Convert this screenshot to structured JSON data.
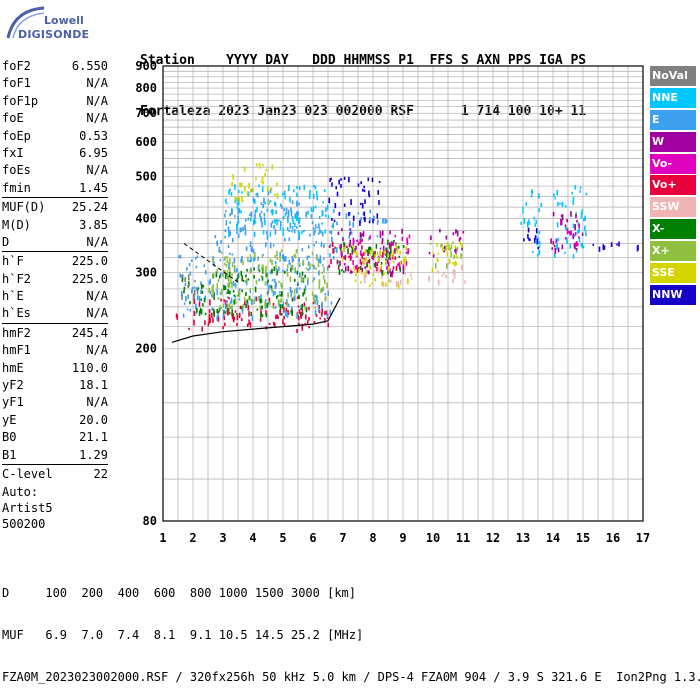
{
  "logo": {
    "brand_top": "Lowell",
    "brand_bottom": "DIGISONDE"
  },
  "header": {
    "line1": "Station    YYYY DAY   DDD HHMMSS P1  FFS S AXN PPS IGA PS",
    "line2": "Fortaleza 2023 Jan23 023 002000 RSF      1 714 100 10+ 11"
  },
  "params": [
    {
      "name": "foF2",
      "value": "6.550"
    },
    {
      "name": "foF1",
      "value": "N/A"
    },
    {
      "name": "foF1p",
      "value": "N/A"
    },
    {
      "name": "foE",
      "value": "N/A"
    },
    {
      "name": "foEp",
      "value": "0.53"
    },
    {
      "name": "fxI",
      "value": "6.95"
    },
    {
      "name": "foEs",
      "value": "N/A"
    },
    {
      "name": "fmin",
      "value": "1.45"
    },
    {
      "sep": true
    },
    {
      "name": "MUF(D)",
      "value": "25.24"
    },
    {
      "name": "M(D)",
      "value": "3.85"
    },
    {
      "name": "D",
      "value": "N/A"
    },
    {
      "sep": true
    },
    {
      "name": "h`F",
      "value": "225.0"
    },
    {
      "name": "h`F2",
      "value": "225.0"
    },
    {
      "name": "h`E",
      "value": "N/A"
    },
    {
      "name": "h`Es",
      "value": "N/A"
    },
    {
      "sep": true
    },
    {
      "name": "hmF2",
      "value": "245.4"
    },
    {
      "name": "hmF1",
      "value": "N/A"
    },
    {
      "name": "hmE",
      "value": "110.0"
    },
    {
      "name": "yF2",
      "value": "18.1"
    },
    {
      "name": "yF1",
      "value": "N/A"
    },
    {
      "name": "yE",
      "value": "20.0"
    },
    {
      "name": "B0",
      "value": "21.1"
    },
    {
      "name": "B1",
      "value": "1.29"
    },
    {
      "sep": true
    },
    {
      "name": "C-level",
      "value": "22"
    }
  ],
  "auto": {
    "line1": "Auto:",
    "line2": "Artist5",
    "line3": "500200"
  },
  "footer": {
    "line1": "D     100  200  400  600  800 1000 1500 3000 [km]",
    "line2": "MUF   6.9  7.0  7.4  8.1  9.1 10.5 14.5 25.2 [MHz]",
    "line3": "FZA0M_2023023002000.RSF / 320fx256h 50 kHz 5.0 km / DPS-4 FZA0M 904 / 3.9 S 321.6 E  Ion2Png 1.3.20"
  },
  "legend": [
    {
      "label": "NoVal",
      "color": "#808080"
    },
    {
      "label": "NNE",
      "color": "#00c8ff"
    },
    {
      "label": "E",
      "color": "#3ca0f0"
    },
    {
      "label": "W",
      "color": "#a000a0"
    },
    {
      "label": "Vo-",
      "color": "#e000c0"
    },
    {
      "label": "Vo+",
      "color": "#e8003c"
    },
    {
      "label": "SSW",
      "color": "#f0b4b4"
    },
    {
      "label": "X-",
      "color": "#008000"
    },
    {
      "label": "X+",
      "color": "#90c040"
    },
    {
      "label": "SSE",
      "color": "#d4d400"
    },
    {
      "label": "NNW",
      "color": "#1400c8"
    }
  ],
  "chart_data": {
    "type": "scatter",
    "title": "",
    "xlabel": "",
    "ylabel": "",
    "xlim": [
      1,
      17
    ],
    "ylim": [
      80,
      900
    ],
    "y_scale": "log",
    "x_ticks": [
      1,
      2,
      3,
      4,
      5,
      6,
      7,
      8,
      9,
      10,
      11,
      12,
      13,
      14,
      15,
      16,
      17
    ],
    "y_ticks": [
      80,
      200,
      300,
      400,
      500,
      600,
      700,
      800,
      900
    ],
    "grid": true,
    "legend_position": "right",
    "series": [
      {
        "name": "Vo+",
        "color": "#e8003c",
        "regions": [
          {
            "x": [
              1.4,
              6.5
            ],
            "y": [
              222,
              248
            ]
          },
          {
            "x": [
              2.0,
              6.5
            ],
            "y": [
              235,
              265
            ]
          },
          {
            "x": [
              6.5,
              8.8
            ],
            "y": [
              300,
              355
            ]
          }
        ]
      },
      {
        "name": "E",
        "color": "#3ca0f0",
        "regions": [
          {
            "x": [
              1.5,
              6.6
            ],
            "y": [
              238,
              330
            ]
          },
          {
            "x": [
              2.7,
              6.9
            ],
            "y": [
              318,
              425
            ]
          },
          {
            "x": [
              3.2,
              6.0
            ],
            "y": [
              395,
              470
            ]
          },
          {
            "x": [
              7.0,
              8.5
            ],
            "y": [
              360,
              420
            ]
          }
        ]
      },
      {
        "name": "NNE",
        "color": "#00c8ff",
        "regions": [
          {
            "x": [
              3.0,
              6.5
            ],
            "y": [
              370,
              480
            ]
          },
          {
            "x": [
              12.9,
              13.6
            ],
            "y": [
              330,
              470
            ]
          },
          {
            "x": [
              14.0,
              15.2
            ],
            "y": [
              330,
              480
            ]
          }
        ]
      },
      {
        "name": "W",
        "color": "#a000a0",
        "regions": [
          {
            "x": [
              6.8,
              9.1
            ],
            "y": [
              300,
              380
            ]
          },
          {
            "x": [
              9.8,
              11.0
            ],
            "y": [
              330,
              380
            ]
          },
          {
            "x": [
              13.9,
              15.0
            ],
            "y": [
              340,
              420
            ]
          }
        ]
      },
      {
        "name": "Vo-",
        "color": "#e000c0",
        "regions": [
          {
            "x": [
              6.7,
              9.2
            ],
            "y": [
              310,
              375
            ]
          },
          {
            "x": [
              14.0,
              14.9
            ],
            "y": [
              345,
              400
            ]
          }
        ]
      },
      {
        "name": "SSW",
        "color": "#f0b4b4",
        "regions": [
          {
            "x": [
              7.5,
              9.3
            ],
            "y": [
              285,
              315
            ]
          },
          {
            "x": [
              9.8,
              11.1
            ],
            "y": [
              285,
              320
            ]
          }
        ]
      },
      {
        "name": "X-",
        "color": "#008000",
        "regions": [
          {
            "x": [
              1.6,
              5.8
            ],
            "y": [
              240,
              310
            ]
          },
          {
            "x": [
              6.8,
              9.0
            ],
            "y": [
              300,
              360
            ]
          }
        ]
      },
      {
        "name": "X+",
        "color": "#90c040",
        "regions": [
          {
            "x": [
              2.5,
              6.5
            ],
            "y": [
              250,
              340
            ]
          },
          {
            "x": [
              9.8,
              11.0
            ],
            "y": [
              315,
              360
            ]
          }
        ]
      },
      {
        "name": "SSE",
        "color": "#d4d400",
        "regions": [
          {
            "x": [
              3.2,
              4.8
            ],
            "y": [
              440,
              540
            ]
          },
          {
            "x": [
              6.9,
              9.2
            ],
            "y": [
              280,
              350
            ]
          },
          {
            "x": [
              9.9,
              11.0
            ],
            "y": [
              300,
              360
            ]
          }
        ]
      },
      {
        "name": "NNW",
        "color": "#1400c8",
        "regions": [
          {
            "x": [
              6.5,
              8.2
            ],
            "y": [
              395,
              500
            ]
          },
          {
            "x": [
              13.0,
              13.6
            ],
            "y": [
              340,
              400
            ]
          },
          {
            "x": [
              14.8,
              16.9
            ],
            "y": [
              340,
              355
            ]
          }
        ]
      },
      {
        "name": "NoVal",
        "color": "#808080",
        "regions": [
          {
            "x": [
              1.5,
              2.2
            ],
            "y": [
              260,
              300
            ]
          }
        ]
      }
    ],
    "trace_line": {
      "x": [
        1.3,
        2.0,
        3.0,
        4.0,
        5.0,
        6.0,
        6.5,
        6.9
      ],
      "y": [
        207,
        214,
        219,
        222,
        225,
        228,
        232,
        262
      ]
    },
    "dashed_line": {
      "x": [
        1.7,
        3.5
      ],
      "y": [
        350,
        285
      ]
    }
  }
}
